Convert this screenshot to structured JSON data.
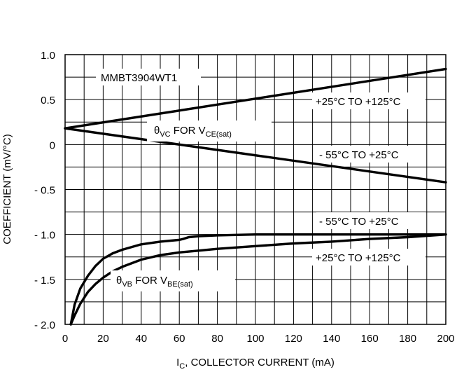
{
  "chart_data": {
    "type": "line",
    "title": "",
    "xlabel": {
      "prefix": "I",
      "sub": "C",
      "suffix": ", COLLECTOR CURRENT (mA)"
    },
    "ylabel": "COEFFICIENT (mV/°C)",
    "xlim": [
      0,
      200
    ],
    "ylim": [
      -2.0,
      1.0
    ],
    "grid": true,
    "x_ticks": [
      0,
      20,
      40,
      60,
      80,
      100,
      120,
      140,
      160,
      180,
      200
    ],
    "x_tick_labels": [
      "0",
      "20",
      "40",
      "60",
      "80",
      "100",
      "120",
      "140",
      "160",
      "180",
      "200"
    ],
    "y_ticks": [
      1.0,
      0.5,
      0,
      -0.5,
      -1.0,
      -1.5,
      -2.0
    ],
    "y_tick_labels": [
      "1.0",
      "0.5",
      "0",
      "- 0.5",
      "- 1.0",
      "- 1.5",
      "- 2.0"
    ],
    "device_label": "MMBT3904WT1",
    "series": [
      {
        "name": "+25°C TO +125°C",
        "group": "θVC FOR VCE(sat)",
        "x": [
          0,
          200
        ],
        "y": [
          0.18,
          0.84
        ]
      },
      {
        "name": "- 55°C TO +25°C",
        "group": "θVC FOR VCE(sat)",
        "x": [
          0,
          200
        ],
        "y": [
          0.18,
          -0.42
        ]
      },
      {
        "name": "- 55°C TO +25°C",
        "group": "θVB FOR VBE(sat)",
        "x": [
          3,
          5,
          8,
          12,
          16,
          20,
          25,
          30,
          40,
          50,
          60,
          62,
          65,
          70,
          80,
          100,
          120,
          140,
          160,
          180,
          200
        ],
        "y": [
          -2.0,
          -1.78,
          -1.6,
          -1.46,
          -1.35,
          -1.27,
          -1.21,
          -1.17,
          -1.11,
          -1.08,
          -1.06,
          -1.05,
          -1.03,
          -1.02,
          -1.01,
          -1.0,
          -1.0,
          -1.0,
          -1.0,
          -1.0,
          -1.0
        ]
      },
      {
        "name": "+25°C TO +125°C",
        "group": "θVB FOR VBE(sat)",
        "x": [
          3,
          5,
          8,
          12,
          16,
          20,
          25,
          30,
          40,
          50,
          60,
          70,
          80,
          100,
          120,
          140,
          160,
          180,
          200
        ],
        "y": [
          -2.0,
          -1.9,
          -1.77,
          -1.64,
          -1.55,
          -1.48,
          -1.41,
          -1.36,
          -1.28,
          -1.23,
          -1.2,
          -1.18,
          -1.16,
          -1.13,
          -1.1,
          -1.08,
          -1.05,
          -1.03,
          -1.0
        ]
      }
    ],
    "annotations": {
      "vc_upper": "+25°C TO +125°C",
      "vc_lower": "- 55°C TO +25°C",
      "vb_upper": "- 55°C TO +25°C",
      "vb_lower": "+25°C TO +125°C",
      "vc_group": {
        "theta": "θ",
        "theta_sub": "VC",
        "mid": " FOR V",
        "v_sub": "CE(sat)"
      },
      "vb_group": {
        "theta": "θ",
        "theta_sub": "VB",
        "mid": " FOR V",
        "v_sub": "BE(sat)"
      }
    }
  }
}
